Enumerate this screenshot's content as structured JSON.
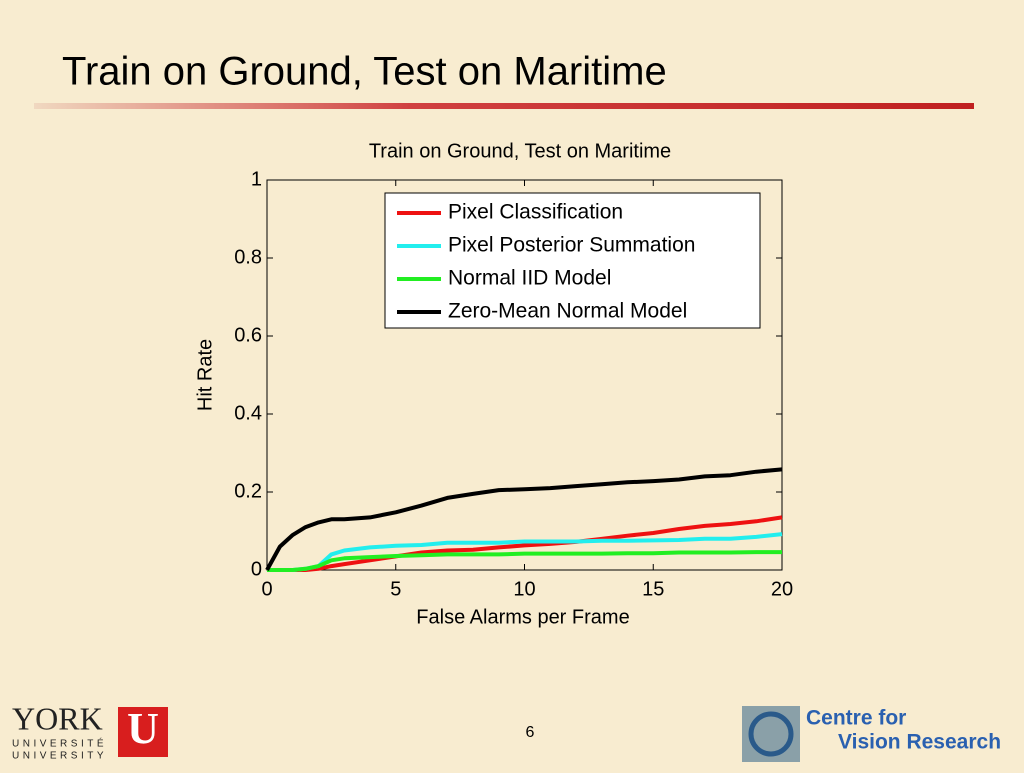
{
  "slide": {
    "title": "Train on Ground, Test on Maritime",
    "page_number": "6",
    "york_logo": {
      "name": "YORK",
      "letter": "U",
      "line1": "UNIVERSITÉ",
      "line2": "UNIVERSITY"
    },
    "cvr_logo": {
      "line1": "Centre for",
      "line2": "Vision Research"
    }
  },
  "chart_data": {
    "type": "line",
    "title": "Train on Ground, Test on Maritime",
    "x_label": "False Alarms per Frame",
    "y_label": "Hit Rate",
    "x": [
      0,
      0.5,
      1,
      1.5,
      2,
      2.5,
      3,
      4,
      5,
      6,
      7,
      8,
      9,
      10,
      11,
      12,
      13,
      14,
      15,
      16,
      17,
      18,
      19,
      20
    ],
    "series": [
      {
        "name": "Pixel Classification",
        "color": "#ee1111",
        "values": [
          0,
          0,
          0,
          0,
          0.003,
          0.01,
          0.015,
          0.025,
          0.035,
          0.045,
          0.05,
          0.052,
          0.058,
          0.063,
          0.067,
          0.072,
          0.08,
          0.088,
          0.095,
          0.105,
          0.113,
          0.118,
          0.125,
          0.135
        ]
      },
      {
        "name": "Pixel Posterior Summation",
        "color": "#22eeee",
        "values": [
          0,
          0,
          0,
          0.003,
          0.01,
          0.04,
          0.05,
          0.058,
          0.062,
          0.064,
          0.07,
          0.07,
          0.07,
          0.073,
          0.073,
          0.073,
          0.075,
          0.075,
          0.076,
          0.077,
          0.08,
          0.08,
          0.085,
          0.092
        ]
      },
      {
        "name": "Normal IID Model",
        "color": "#22ee22",
        "values": [
          0,
          0,
          0,
          0.003,
          0.01,
          0.025,
          0.03,
          0.033,
          0.036,
          0.038,
          0.04,
          0.04,
          0.04,
          0.042,
          0.042,
          0.042,
          0.042,
          0.043,
          0.043,
          0.045,
          0.045,
          0.045,
          0.046,
          0.046
        ]
      },
      {
        "name": "Zero-Mean Normal Model",
        "color": "#000000",
        "values": [
          0,
          0.06,
          0.09,
          0.11,
          0.122,
          0.13,
          0.13,
          0.135,
          0.148,
          0.165,
          0.185,
          0.195,
          0.205,
          0.207,
          0.21,
          0.215,
          0.22,
          0.225,
          0.228,
          0.232,
          0.24,
          0.243,
          0.252,
          0.258
        ]
      }
    ],
    "xlim": [
      0,
      20
    ],
    "xticks": [
      0,
      5,
      10,
      15,
      20
    ],
    "ylim": [
      0,
      1
    ],
    "yticks": [
      0,
      0.2,
      0.4,
      0.6,
      0.8,
      1
    ],
    "legend": "upper right",
    "grid": false
  }
}
